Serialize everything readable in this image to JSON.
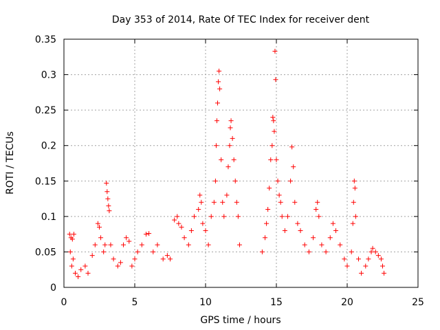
{
  "chart_data": {
    "type": "scatter",
    "title": "Day 353 of 2014, Rate Of TEC Index for receiver dent",
    "xlabel": "GPS time / hours",
    "ylabel": "ROTI / TECUs",
    "xlim": [
      0,
      25
    ],
    "ylim": [
      0,
      0.35
    ],
    "xticks": [
      0,
      5,
      10,
      15,
      20,
      25
    ],
    "yticks": [
      0,
      0.05,
      0.1,
      0.15,
      0.2,
      0.25,
      0.3,
      0.35
    ],
    "xtick_labels": [
      "0",
      "5",
      "10",
      "15",
      "20",
      "25"
    ],
    "ytick_labels": [
      "0",
      "0.05",
      "0.1",
      "0.15",
      "0.2",
      "0.25",
      "0.3",
      "0.35"
    ],
    "grid": true,
    "marker": "+",
    "color": "#ff0000",
    "series": [
      {
        "points": [
          [
            0.4,
            0.075
          ],
          [
            0.5,
            0.07
          ],
          [
            0.6,
            0.068
          ],
          [
            0.7,
            0.075
          ],
          [
            0.45,
            0.05
          ],
          [
            0.55,
            0.03
          ],
          [
            0.65,
            0.04
          ],
          [
            0.8,
            0.02
          ],
          [
            1.0,
            0.015
          ],
          [
            1.2,
            0.025
          ],
          [
            1.5,
            0.03
          ],
          [
            1.7,
            0.02
          ],
          [
            2.0,
            0.045
          ],
          [
            2.2,
            0.06
          ],
          [
            2.4,
            0.09
          ],
          [
            2.5,
            0.085
          ],
          [
            2.6,
            0.07
          ],
          [
            2.8,
            0.05
          ],
          [
            2.9,
            0.06
          ],
          [
            3.0,
            0.147
          ],
          [
            3.05,
            0.135
          ],
          [
            3.1,
            0.125
          ],
          [
            3.15,
            0.115
          ],
          [
            3.2,
            0.108
          ],
          [
            3.3,
            0.06
          ],
          [
            3.5,
            0.04
          ],
          [
            3.8,
            0.03
          ],
          [
            4.0,
            0.035
          ],
          [
            4.2,
            0.06
          ],
          [
            4.4,
            0.07
          ],
          [
            4.6,
            0.065
          ],
          [
            4.8,
            0.03
          ],
          [
            5.0,
            0.04
          ],
          [
            5.2,
            0.05
          ],
          [
            5.5,
            0.06
          ],
          [
            5.8,
            0.075
          ],
          [
            6.0,
            0.076
          ],
          [
            6.3,
            0.05
          ],
          [
            6.6,
            0.06
          ],
          [
            7.0,
            0.04
          ],
          [
            7.3,
            0.045
          ],
          [
            7.5,
            0.04
          ],
          [
            7.8,
            0.095
          ],
          [
            8.0,
            0.1
          ],
          [
            8.1,
            0.09
          ],
          [
            8.3,
            0.085
          ],
          [
            8.5,
            0.07
          ],
          [
            8.8,
            0.06
          ],
          [
            9.0,
            0.08
          ],
          [
            9.2,
            0.1
          ],
          [
            9.5,
            0.11
          ],
          [
            9.6,
            0.13
          ],
          [
            9.7,
            0.12
          ],
          [
            9.8,
            0.09
          ],
          [
            10.0,
            0.08
          ],
          [
            10.2,
            0.06
          ],
          [
            10.4,
            0.1
          ],
          [
            10.6,
            0.12
          ],
          [
            10.7,
            0.15
          ],
          [
            10.75,
            0.2
          ],
          [
            10.8,
            0.235
          ],
          [
            10.85,
            0.26
          ],
          [
            10.9,
            0.29
          ],
          [
            10.95,
            0.305
          ],
          [
            11.0,
            0.28
          ],
          [
            11.1,
            0.18
          ],
          [
            11.2,
            0.12
          ],
          [
            11.3,
            0.1
          ],
          [
            11.5,
            0.13
          ],
          [
            11.6,
            0.17
          ],
          [
            11.7,
            0.2
          ],
          [
            11.75,
            0.225
          ],
          [
            11.8,
            0.235
          ],
          [
            11.9,
            0.21
          ],
          [
            12.0,
            0.18
          ],
          [
            12.1,
            0.15
          ],
          [
            12.2,
            0.12
          ],
          [
            12.3,
            0.1
          ],
          [
            12.4,
            0.06
          ],
          [
            14.0,
            0.05
          ],
          [
            14.2,
            0.07
          ],
          [
            14.3,
            0.09
          ],
          [
            14.4,
            0.11
          ],
          [
            14.5,
            0.14
          ],
          [
            14.6,
            0.18
          ],
          [
            14.7,
            0.2
          ],
          [
            14.75,
            0.24
          ],
          [
            14.8,
            0.235
          ],
          [
            14.85,
            0.22
          ],
          [
            14.9,
            0.333
          ],
          [
            14.95,
            0.293
          ],
          [
            15.0,
            0.18
          ],
          [
            15.1,
            0.15
          ],
          [
            15.2,
            0.13
          ],
          [
            15.3,
            0.12
          ],
          [
            15.4,
            0.1
          ],
          [
            15.6,
            0.08
          ],
          [
            15.8,
            0.1
          ],
          [
            16.0,
            0.15
          ],
          [
            16.1,
            0.198
          ],
          [
            16.2,
            0.17
          ],
          [
            16.3,
            0.12
          ],
          [
            16.5,
            0.09
          ],
          [
            16.7,
            0.08
          ],
          [
            17.0,
            0.06
          ],
          [
            17.3,
            0.05
          ],
          [
            17.6,
            0.07
          ],
          [
            17.8,
            0.11
          ],
          [
            17.9,
            0.12
          ],
          [
            18.0,
            0.1
          ],
          [
            18.2,
            0.06
          ],
          [
            18.5,
            0.05
          ],
          [
            18.8,
            0.07
          ],
          [
            19.0,
            0.09
          ],
          [
            19.2,
            0.08
          ],
          [
            19.5,
            0.06
          ],
          [
            19.8,
            0.04
          ],
          [
            20.0,
            0.03
          ],
          [
            20.3,
            0.05
          ],
          [
            20.4,
            0.09
          ],
          [
            20.45,
            0.12
          ],
          [
            20.5,
            0.15
          ],
          [
            20.55,
            0.14
          ],
          [
            20.6,
            0.1
          ],
          [
            20.8,
            0.04
          ],
          [
            21.0,
            0.02
          ],
          [
            21.3,
            0.03
          ],
          [
            21.5,
            0.04
          ],
          [
            21.7,
            0.05
          ],
          [
            21.8,
            0.055
          ],
          [
            22.0,
            0.05
          ],
          [
            22.2,
            0.045
          ],
          [
            22.4,
            0.04
          ],
          [
            22.5,
            0.03
          ],
          [
            22.6,
            0.02
          ]
        ]
      }
    ]
  }
}
